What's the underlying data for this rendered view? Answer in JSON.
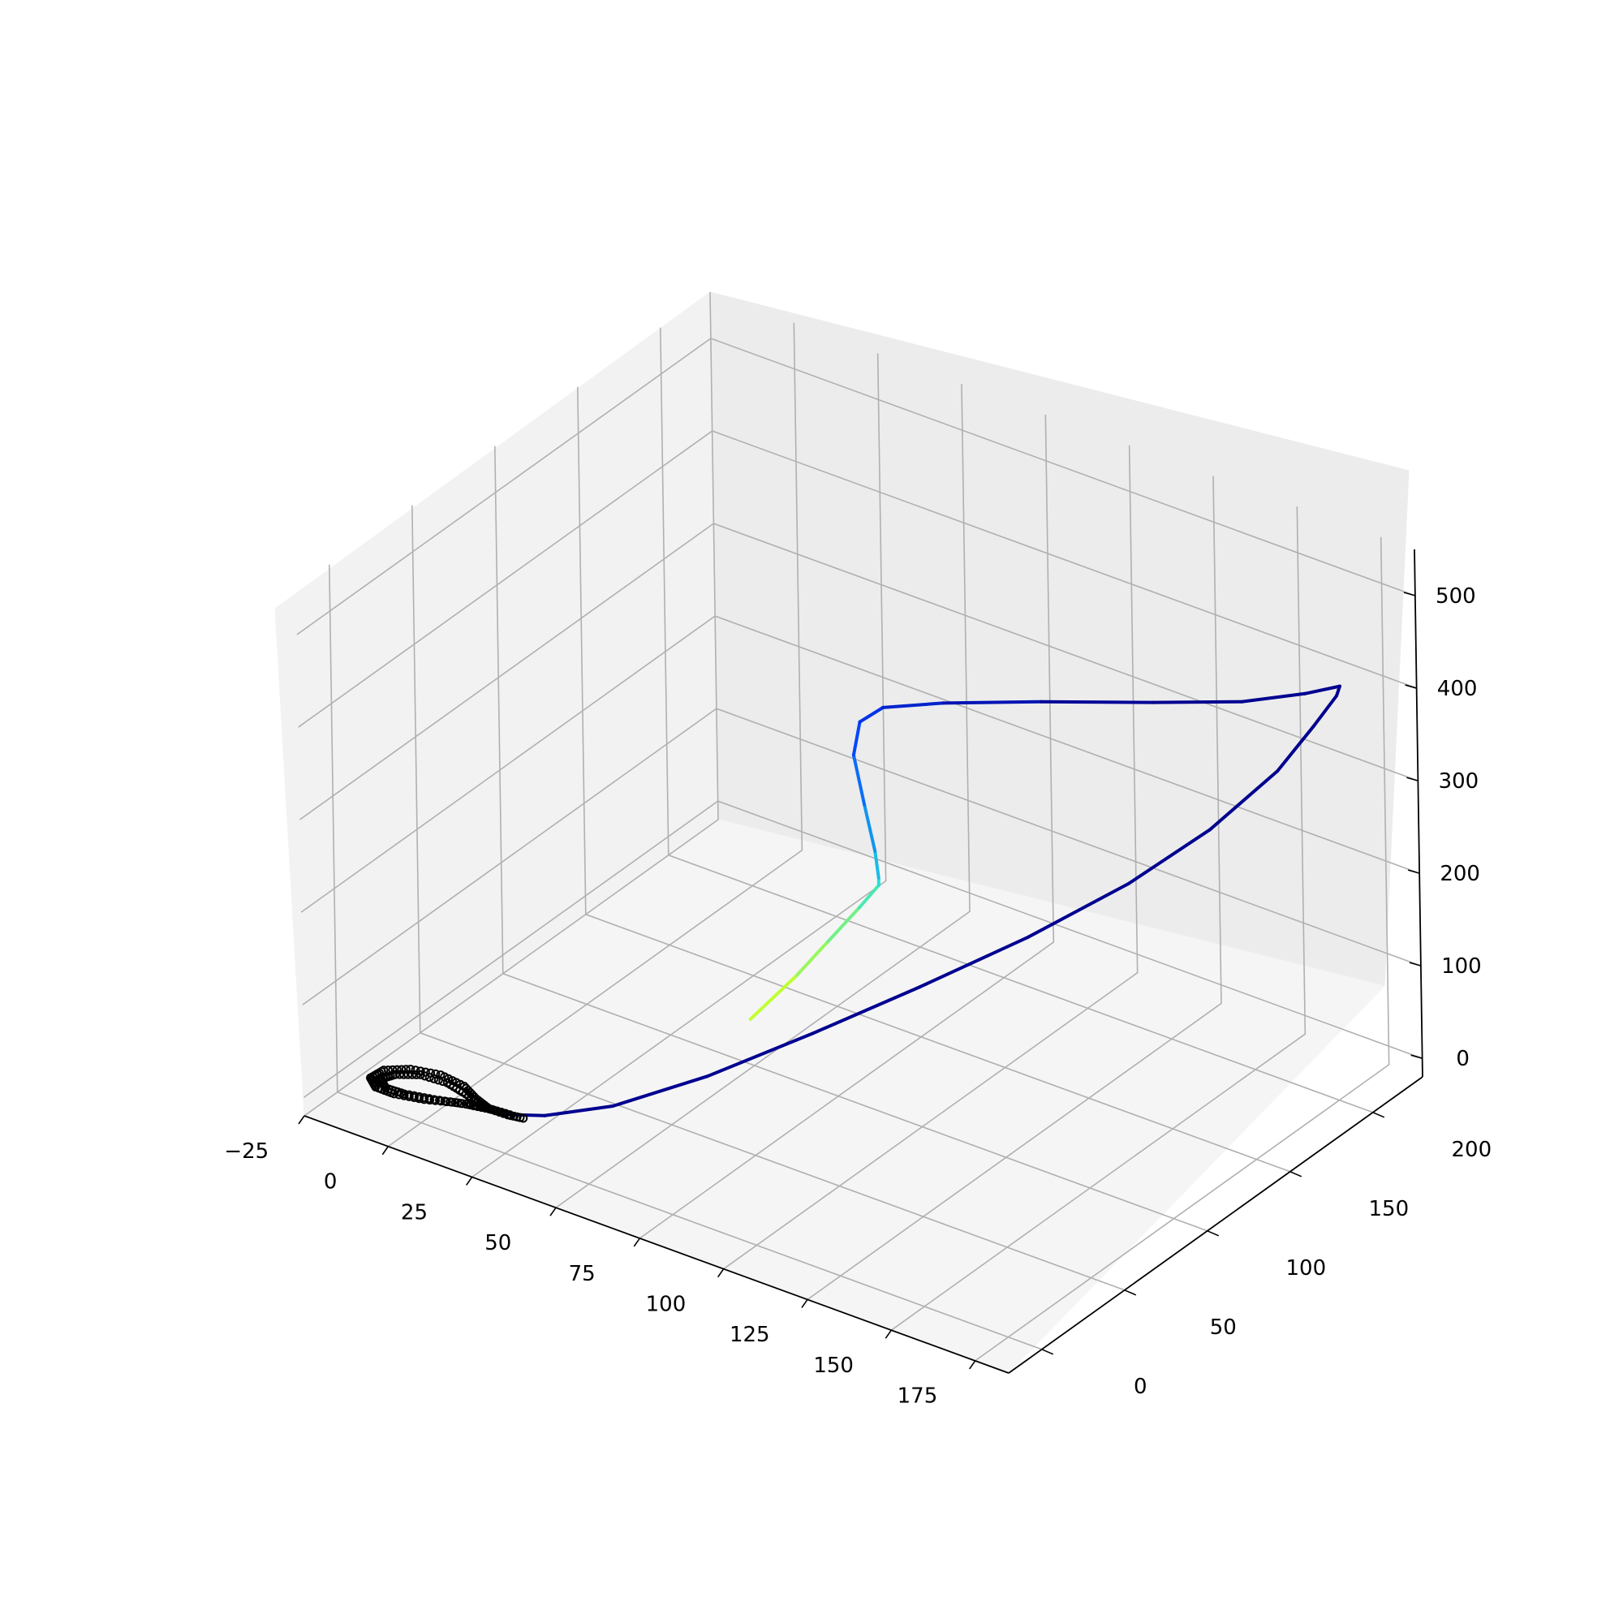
{
  "chart_data": {
    "type": "line",
    "projection": "3d",
    "title": "",
    "xlabel": "",
    "ylabel": "",
    "zlabel": "",
    "xlim": [
      -25,
      185
    ],
    "ylim": [
      -20,
      230
    ],
    "zlim": [
      -20,
      550
    ],
    "grid": true,
    "x_ticks": [
      {
        "value": -25,
        "label": "−25"
      },
      {
        "value": 0,
        "label": "0"
      },
      {
        "value": 25,
        "label": "25"
      },
      {
        "value": 50,
        "label": "50"
      },
      {
        "value": 75,
        "label": "75"
      },
      {
        "value": 100,
        "label": "100"
      },
      {
        "value": 125,
        "label": "125"
      },
      {
        "value": 150,
        "label": "150"
      },
      {
        "value": 175,
        "label": "175"
      }
    ],
    "y_ticks": [
      {
        "value": 0,
        "label": "0"
      },
      {
        "value": 50,
        "label": "50"
      },
      {
        "value": 100,
        "label": "100"
      },
      {
        "value": 150,
        "label": "150"
      },
      {
        "value": 200,
        "label": "200"
      }
    ],
    "z_ticks": [
      {
        "value": 0,
        "label": "0"
      },
      {
        "value": 100,
        "label": "100"
      },
      {
        "value": 200,
        "label": "200"
      },
      {
        "value": 300,
        "label": "300"
      },
      {
        "value": 400,
        "label": "400"
      },
      {
        "value": 500,
        "label": "500"
      }
    ],
    "series": [
      {
        "colormap": "jet",
        "description_of_color": "gradient from yellow-green at start through cyan to dark navy",
        "points": [
          [
            55,
            88,
            52
          ],
          [
            58,
            110,
            75
          ],
          [
            60,
            125,
            95
          ],
          [
            62,
            140,
            115
          ],
          [
            63,
            150,
            128
          ],
          [
            62,
            152,
            132
          ],
          [
            58,
            158,
            148
          ],
          [
            50,
            168,
            175
          ],
          [
            42,
            178,
            205
          ],
          [
            40,
            186,
            228
          ],
          [
            45,
            190,
            245
          ],
          [
            60,
            196,
            262
          ],
          [
            85,
            205,
            285
          ],
          [
            115,
            212,
            315
          ],
          [
            140,
            215,
            345
          ],
          [
            158,
            217,
            375
          ],
          [
            168,
            218,
            395
          ],
          [
            170,
            212,
            395
          ],
          [
            170,
            198,
            380
          ],
          [
            168,
            180,
            352
          ],
          [
            160,
            155,
            310
          ],
          [
            148,
            130,
            268
          ],
          [
            130,
            105,
            218
          ],
          [
            110,
            80,
            170
          ],
          [
            90,
            55,
            125
          ],
          [
            70,
            32,
            82
          ],
          [
            50,
            15,
            45
          ],
          [
            34,
            6,
            25
          ],
          [
            25,
            3,
            18
          ]
        ],
        "color_stops": [
          "#c0ff30",
          "#20e0e0",
          "#0040ff",
          "#000090"
        ]
      },
      {
        "color": "#000000",
        "description_of_color": "black attractor loops",
        "points": [
          [
            25,
            3,
            18
          ],
          [
            18,
            2,
            18
          ],
          [
            12,
            -2,
            20
          ],
          [
            5,
            -8,
            22
          ],
          [
            -2,
            -12,
            24
          ],
          [
            -7,
            -13,
            26
          ],
          [
            -10,
            -10,
            28
          ],
          [
            -9,
            -4,
            30
          ],
          [
            -4,
            2,
            30
          ],
          [
            3,
            6,
            28
          ],
          [
            10,
            6,
            25
          ],
          [
            15,
            3,
            22
          ],
          [
            20,
            1,
            20
          ],
          [
            14,
            -1,
            20
          ],
          [
            7,
            -6,
            22
          ],
          [
            0,
            -10,
            24
          ],
          [
            -5,
            -11,
            25
          ],
          [
            -8,
            -8,
            27
          ],
          [
            -6,
            -3,
            28
          ],
          [
            -1,
            2,
            28
          ],
          [
            6,
            4,
            26
          ],
          [
            12,
            3,
            23
          ],
          [
            18,
            1,
            20
          ],
          [
            25,
            2,
            19
          ],
          [
            30,
            3,
            20
          ]
        ]
      }
    ]
  }
}
